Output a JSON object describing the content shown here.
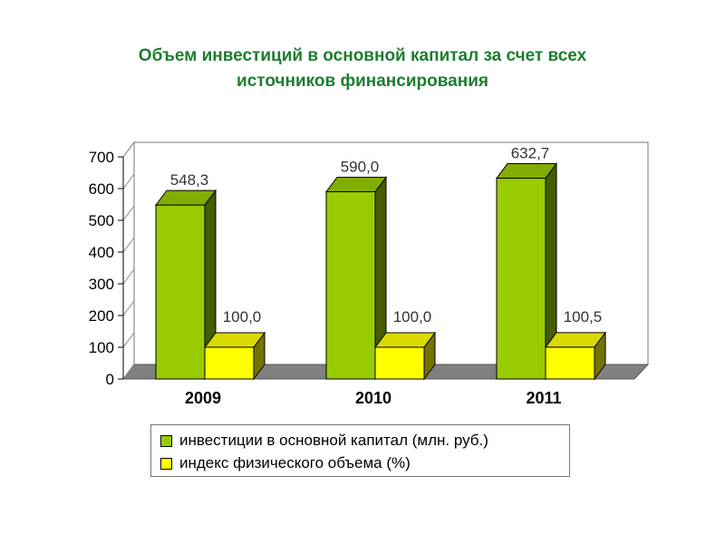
{
  "title": {
    "line1": "Объем инвестиций в основной капитал за счет всех",
    "line2": "источников финансирования"
  },
  "colors": {
    "investments": "#99cc00",
    "index": "#ffff00",
    "title": "#1e7d2e"
  },
  "chart_data": {
    "type": "bar",
    "categories": [
      "2009",
      "2010",
      "2011"
    ],
    "series": [
      {
        "name": "инвестиции в основной капитал (млн. руб.)",
        "values": [
          548.3,
          590.0,
          632.7
        ],
        "labels": [
          "548,3",
          "590,0",
          "632,7"
        ]
      },
      {
        "name": "индекс физического объема (%)",
        "values": [
          100.0,
          100.0,
          100.5
        ],
        "labels": [
          "100,0",
          "100,0",
          "100,5"
        ]
      }
    ],
    "ylim": [
      0,
      700
    ],
    "yticks": [
      "0",
      "100",
      "200",
      "300",
      "400",
      "500",
      "600",
      "700"
    ],
    "legend_position": "bottom",
    "grid": false,
    "three_d": true
  }
}
